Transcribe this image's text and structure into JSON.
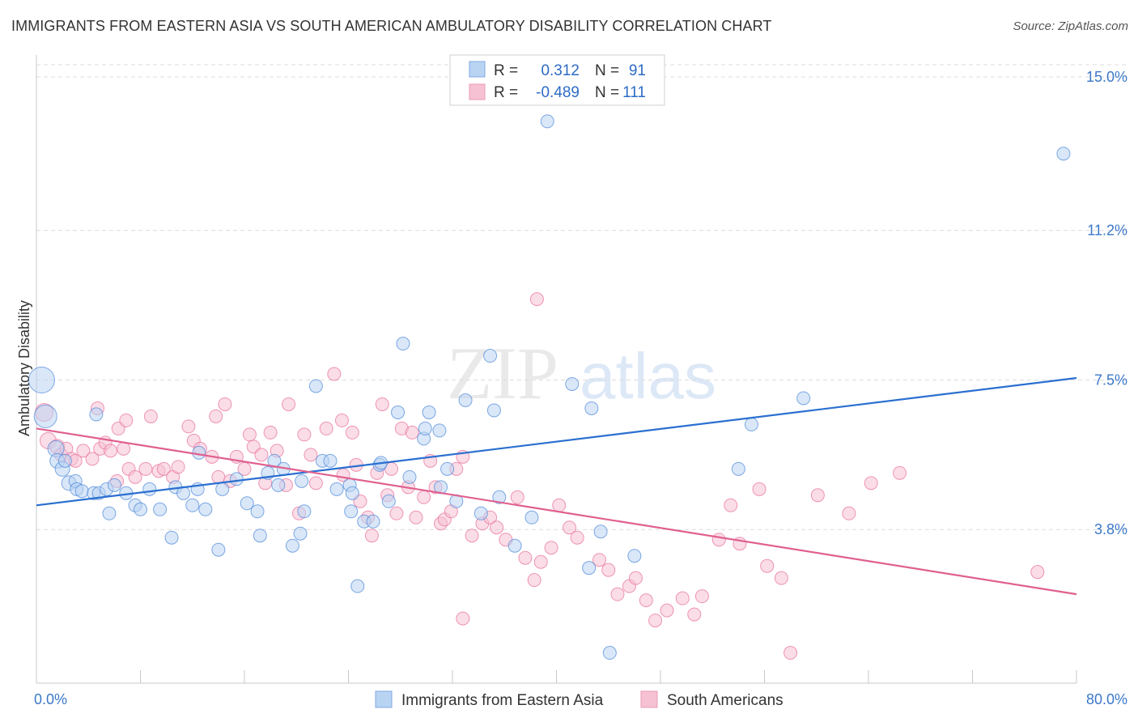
{
  "title": "IMMIGRANTS FROM EASTERN ASIA VS SOUTH AMERICAN AMBULATORY DISABILITY CORRELATION CHART",
  "source": "Source: ZipAtlas.com",
  "watermark": {
    "zip": "ZIP",
    "atlas": "atlas"
  },
  "chart_data": {
    "type": "scatter",
    "ylabel": "Ambulatory Disability",
    "xlim": [
      0,
      80
    ],
    "ylim": [
      0,
      15.3
    ],
    "x_tick_labels": {
      "min": "0.0%",
      "max": "80.0%"
    },
    "y_ticks": [
      {
        "value": 3.8,
        "label": "3.8%"
      },
      {
        "value": 7.5,
        "label": "7.5%"
      },
      {
        "value": 11.2,
        "label": "11.2%"
      },
      {
        "value": 15.0,
        "label": "15.0%"
      }
    ],
    "grid": "horizontal dashed",
    "legend_position": "top-center",
    "legend": [
      {
        "r_label": "R =",
        "r_value": "0.312",
        "n_label": "N =",
        "n_value": "91"
      },
      {
        "r_label": "R =",
        "r_value": "-0.489",
        "n_label": "N =",
        "n_value": "111"
      }
    ],
    "series": [
      {
        "name": "Immigrants from Eastern Asia",
        "color": "#4a86d8",
        "fill": "#b9d3f3",
        "trend": {
          "x": [
            0,
            80
          ],
          "y": [
            4.4,
            7.55
          ]
        },
        "points": [
          [
            0.4,
            7.5,
            16
          ],
          [
            0.7,
            6.6,
            14
          ],
          [
            1.5,
            5.8,
            10
          ],
          [
            1.6,
            5.5,
            9
          ],
          [
            2.0,
            5.3,
            9
          ],
          [
            2.2,
            5.5,
            8
          ],
          [
            2.5,
            4.95,
            9
          ],
          [
            3.0,
            5.0,
            8
          ],
          [
            3.1,
            4.8,
            8
          ],
          [
            3.5,
            4.75,
            8
          ],
          [
            4.4,
            4.7,
            8
          ],
          [
            4.6,
            6.65,
            8
          ],
          [
            4.8,
            4.7,
            8
          ],
          [
            5.4,
            4.8,
            8
          ],
          [
            5.6,
            4.2,
            8
          ],
          [
            6.0,
            4.9,
            8
          ],
          [
            6.9,
            4.7,
            8
          ],
          [
            7.6,
            4.4,
            8
          ],
          [
            8.0,
            4.3,
            8
          ],
          [
            8.7,
            4.8,
            8
          ],
          [
            9.5,
            4.3,
            8
          ],
          [
            10.4,
            3.6,
            8
          ],
          [
            10.7,
            4.85,
            8
          ],
          [
            11.3,
            4.7,
            8
          ],
          [
            12.0,
            4.4,
            8
          ],
          [
            12.5,
            5.7,
            8
          ],
          [
            12.4,
            4.8,
            8
          ],
          [
            13.0,
            4.3,
            8
          ],
          [
            14.3,
            4.8,
            8
          ],
          [
            14.0,
            3.3,
            8
          ],
          [
            15.4,
            5.05,
            8
          ],
          [
            16.2,
            4.45,
            8
          ],
          [
            17.0,
            4.25,
            8
          ],
          [
            17.2,
            3.65,
            8
          ],
          [
            17.8,
            5.2,
            8
          ],
          [
            18.3,
            5.5,
            8
          ],
          [
            18.6,
            4.9,
            8
          ],
          [
            19.0,
            5.3,
            8
          ],
          [
            19.7,
            3.4,
            8
          ],
          [
            20.3,
            3.7,
            8
          ],
          [
            20.4,
            5.0,
            8
          ],
          [
            20.6,
            4.25,
            8
          ],
          [
            21.5,
            7.35,
            8
          ],
          [
            22.0,
            5.5,
            8
          ],
          [
            22.6,
            5.5,
            8
          ],
          [
            23.1,
            4.8,
            8
          ],
          [
            24.1,
            4.9,
            8
          ],
          [
            24.2,
            4.25,
            8
          ],
          [
            24.3,
            4.7,
            8
          ],
          [
            24.7,
            2.4,
            8
          ],
          [
            25.2,
            4.0,
            8
          ],
          [
            25.9,
            4.0,
            8
          ],
          [
            26.4,
            5.4,
            8
          ],
          [
            26.5,
            5.45,
            8
          ],
          [
            27.1,
            4.5,
            8
          ],
          [
            27.8,
            6.7,
            8
          ],
          [
            28.2,
            8.4,
            8
          ],
          [
            28.7,
            5.1,
            8
          ],
          [
            29.8,
            6.05,
            8
          ],
          [
            29.9,
            6.3,
            8
          ],
          [
            30.2,
            6.7,
            8
          ],
          [
            31.0,
            6.25,
            8
          ],
          [
            31.1,
            4.85,
            8
          ],
          [
            31.6,
            5.3,
            8
          ],
          [
            32.3,
            4.5,
            8
          ],
          [
            33.0,
            7.0,
            8
          ],
          [
            34.2,
            4.2,
            8
          ],
          [
            34.9,
            8.1,
            8
          ],
          [
            35.2,
            6.75,
            8
          ],
          [
            35.6,
            4.6,
            8
          ],
          [
            36.8,
            3.4,
            8
          ],
          [
            38.1,
            4.1,
            8
          ],
          [
            39.3,
            13.9,
            8
          ],
          [
            41.2,
            7.4,
            8
          ],
          [
            42.7,
            6.8,
            8
          ],
          [
            42.5,
            2.85,
            8
          ],
          [
            43.4,
            3.75,
            8
          ],
          [
            44.1,
            0.75,
            8
          ],
          [
            46.0,
            3.15,
            8
          ],
          [
            54.0,
            5.3,
            8
          ],
          [
            55.0,
            6.4,
            8
          ],
          [
            59.0,
            7.05,
            8
          ],
          [
            79.0,
            13.1,
            8
          ]
        ]
      },
      {
        "name": "South Americans",
        "color": "#e86c98",
        "fill": "#f6c1d3",
        "trend": {
          "x": [
            0,
            80
          ],
          "y": [
            6.3,
            2.2
          ]
        },
        "points": [
          [
            0.6,
            6.7,
            11
          ],
          [
            0.9,
            6.0,
            10
          ],
          [
            1.6,
            5.85,
            9
          ],
          [
            1.9,
            5.65,
            8
          ],
          [
            2.3,
            5.8,
            8
          ],
          [
            2.7,
            5.55,
            8
          ],
          [
            3.0,
            5.5,
            8
          ],
          [
            3.6,
            5.75,
            8
          ],
          [
            4.3,
            5.55,
            8
          ],
          [
            4.7,
            6.8,
            8
          ],
          [
            4.9,
            5.8,
            8
          ],
          [
            5.3,
            5.95,
            8
          ],
          [
            5.7,
            5.75,
            8
          ],
          [
            6.3,
            6.3,
            8
          ],
          [
            6.7,
            5.8,
            8
          ],
          [
            6.2,
            5.0,
            8
          ],
          [
            6.9,
            6.5,
            8
          ],
          [
            7.1,
            5.3,
            8
          ],
          [
            7.6,
            5.1,
            8
          ],
          [
            8.4,
            5.3,
            8
          ],
          [
            8.8,
            6.6,
            8
          ],
          [
            9.4,
            5.25,
            8
          ],
          [
            9.8,
            5.3,
            8
          ],
          [
            10.5,
            5.1,
            8
          ],
          [
            10.9,
            5.35,
            8
          ],
          [
            11.7,
            6.35,
            8
          ],
          [
            12.1,
            6.0,
            8
          ],
          [
            12.6,
            5.8,
            8
          ],
          [
            13.5,
            5.6,
            8
          ],
          [
            13.8,
            6.6,
            8
          ],
          [
            14.0,
            5.1,
            8
          ],
          [
            14.5,
            6.9,
            8
          ],
          [
            14.9,
            5.0,
            8
          ],
          [
            15.4,
            5.6,
            8
          ],
          [
            16.0,
            5.3,
            8
          ],
          [
            16.4,
            6.15,
            8
          ],
          [
            16.7,
            5.85,
            8
          ],
          [
            17.3,
            5.65,
            8
          ],
          [
            17.6,
            4.95,
            8
          ],
          [
            18.0,
            6.2,
            8
          ],
          [
            18.5,
            5.75,
            8
          ],
          [
            19.2,
            4.9,
            8
          ],
          [
            19.4,
            6.9,
            8
          ],
          [
            20.2,
            4.2,
            8
          ],
          [
            20.6,
            6.15,
            8
          ],
          [
            21.1,
            5.65,
            8
          ],
          [
            21.5,
            4.95,
            8
          ],
          [
            22.3,
            6.3,
            8
          ],
          [
            22.9,
            7.65,
            8
          ],
          [
            23.5,
            6.5,
            8
          ],
          [
            23.6,
            5.15,
            8
          ],
          [
            24.3,
            6.2,
            8
          ],
          [
            24.6,
            5.4,
            8
          ],
          [
            24.9,
            4.5,
            8
          ],
          [
            25.5,
            4.1,
            8
          ],
          [
            25.8,
            3.65,
            8
          ],
          [
            26.2,
            5.2,
            8
          ],
          [
            26.6,
            6.9,
            8
          ],
          [
            27.0,
            4.65,
            8
          ],
          [
            27.3,
            5.3,
            8
          ],
          [
            27.7,
            4.2,
            8
          ],
          [
            28.1,
            6.3,
            8
          ],
          [
            28.6,
            4.85,
            8
          ],
          [
            28.9,
            6.2,
            8
          ],
          [
            29.2,
            4.1,
            8
          ],
          [
            29.8,
            4.6,
            8
          ],
          [
            30.3,
            5.5,
            8
          ],
          [
            30.7,
            4.85,
            8
          ],
          [
            31.1,
            3.95,
            8
          ],
          [
            31.4,
            4.05,
            8
          ],
          [
            31.9,
            4.25,
            8
          ],
          [
            32.3,
            5.3,
            8
          ],
          [
            32.8,
            5.6,
            8
          ],
          [
            33.5,
            3.65,
            8
          ],
          [
            34.3,
            3.95,
            8
          ],
          [
            34.9,
            4.1,
            8
          ],
          [
            35.4,
            3.85,
            8
          ],
          [
            36.1,
            3.55,
            8
          ],
          [
            37.0,
            4.6,
            8
          ],
          [
            37.6,
            3.1,
            8
          ],
          [
            38.3,
            2.55,
            8
          ],
          [
            38.8,
            3.0,
            8
          ],
          [
            39.6,
            3.35,
            8
          ],
          [
            40.2,
            4.4,
            8
          ],
          [
            41.0,
            3.85,
            8
          ],
          [
            41.6,
            3.6,
            8
          ],
          [
            43.3,
            3.05,
            8
          ],
          [
            44.0,
            2.8,
            8
          ],
          [
            44.7,
            2.2,
            8
          ],
          [
            45.6,
            2.4,
            8
          ],
          [
            46.1,
            2.6,
            8
          ],
          [
            46.9,
            2.05,
            8
          ],
          [
            47.6,
            1.55,
            8
          ],
          [
            48.5,
            1.8,
            8
          ],
          [
            49.7,
            2.1,
            8
          ],
          [
            50.6,
            1.7,
            8
          ],
          [
            51.2,
            2.15,
            8
          ],
          [
            52.5,
            3.55,
            8
          ],
          [
            53.4,
            4.4,
            8
          ],
          [
            54.1,
            3.45,
            8
          ],
          [
            55.6,
            4.8,
            8
          ],
          [
            56.2,
            2.9,
            8
          ],
          [
            57.3,
            2.6,
            8
          ],
          [
            58.0,
            0.75,
            8
          ],
          [
            60.1,
            4.65,
            8
          ],
          [
            62.5,
            4.2,
            8
          ],
          [
            64.2,
            4.95,
            8
          ],
          [
            66.4,
            5.2,
            8
          ],
          [
            77.0,
            2.75,
            8
          ],
          [
            38.5,
            9.5,
            8
          ],
          [
            32.8,
            1.6,
            8
          ]
        ]
      }
    ]
  },
  "bottom_legend": [
    {
      "label": "Immigrants from Eastern Asia"
    },
    {
      "label": "South Americans"
    }
  ]
}
